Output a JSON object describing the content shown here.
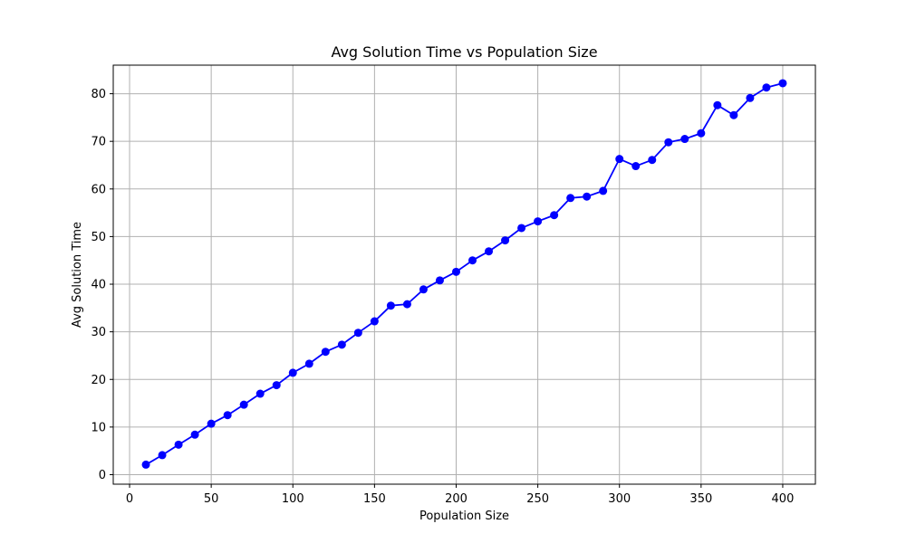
{
  "chart_data": {
    "type": "line",
    "title": "Avg Solution Time vs Population Size",
    "xlabel": "Population Size",
    "ylabel": "Avg Solution Time",
    "xlim": [
      -10,
      420
    ],
    "ylim": [
      -2,
      86
    ],
    "xticks": [
      0,
      50,
      100,
      150,
      200,
      250,
      300,
      350,
      400
    ],
    "yticks": [
      0,
      10,
      20,
      30,
      40,
      50,
      60,
      70,
      80
    ],
    "grid": true,
    "colors": {
      "series": "#0000ff",
      "grid": "#b0b0b0",
      "axis": "#000000"
    },
    "series": [
      {
        "marker": "circle",
        "x": [
          10,
          20,
          30,
          40,
          50,
          60,
          70,
          80,
          90,
          100,
          110,
          120,
          130,
          140,
          150,
          160,
          170,
          180,
          190,
          200,
          210,
          220,
          230,
          240,
          250,
          260,
          270,
          280,
          290,
          300,
          310,
          320,
          330,
          340,
          350,
          360,
          370,
          380,
          390,
          400
        ],
        "y": [
          2.1,
          4.1,
          6.3,
          8.4,
          10.7,
          12.5,
          14.7,
          17.0,
          18.8,
          21.4,
          23.3,
          25.8,
          27.3,
          29.8,
          32.2,
          35.5,
          35.8,
          38.9,
          40.8,
          42.6,
          45.0,
          46.9,
          49.2,
          51.8,
          53.2,
          54.5,
          58.1,
          58.4,
          59.6,
          66.3,
          64.8,
          66.1,
          69.8,
          70.5,
          71.7,
          77.6,
          75.5,
          79.1,
          81.3,
          82.2
        ]
      }
    ]
  }
}
